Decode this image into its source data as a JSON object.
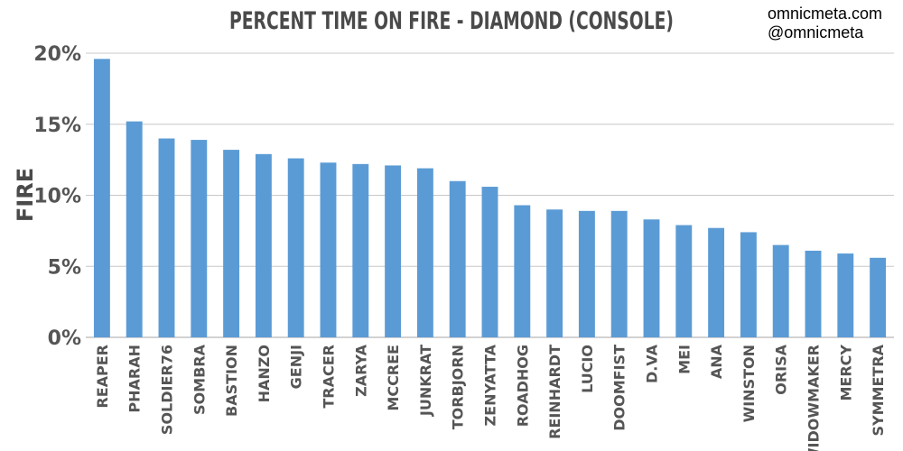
{
  "watermark": {
    "line1": "omnicmeta.com",
    "line2": "@omnicmeta"
  },
  "colors": {
    "bar": "#5b9bd5",
    "grid": "#c8c8c8",
    "axis": "#a6a6a6"
  },
  "chart_data": {
    "type": "bar",
    "title": "PERCENT TIME ON FIRE - DIAMOND (CONSOLE)",
    "xlabel": "",
    "ylabel": "FIRE",
    "ylim": [
      0,
      20
    ],
    "y_ticks": [
      "0%",
      "5%",
      "10%",
      "15%",
      "20%"
    ],
    "grid": true,
    "legend": "none",
    "categories": [
      "REAPER",
      "PHARAH",
      "SOLDIER76",
      "SOMBRA",
      "BASTION",
      "HANZO",
      "GENJI",
      "TRACER",
      "ZARYA",
      "MCCREE",
      "JUNKRAT",
      "TORBJORN",
      "ZENYATTA",
      "ROADHOG",
      "REINHARDT",
      "LUCIO",
      "DOOMFIST",
      "D.VA",
      "MEI",
      "ANA",
      "WINSTON",
      "ORISA",
      "WIDOWMAKER",
      "MERCY",
      "SYMMETRA"
    ],
    "values": [
      19.6,
      15.2,
      14.0,
      13.9,
      13.2,
      12.9,
      12.6,
      12.3,
      12.2,
      12.1,
      11.9,
      11.0,
      10.6,
      9.3,
      9.0,
      8.9,
      8.9,
      8.3,
      7.9,
      7.7,
      7.4,
      6.5,
      6.1,
      5.9,
      5.6
    ]
  }
}
